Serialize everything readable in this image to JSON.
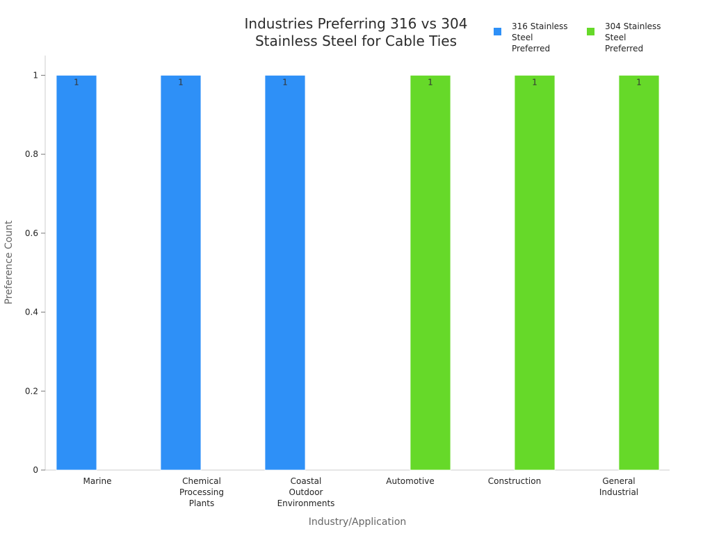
{
  "chart_data": {
    "type": "bar",
    "title": "Industries Preferring 316 vs 304 Stainless Steel for Cable Ties",
    "xlabel": "Industry/Application",
    "ylabel": "Preference Count",
    "ylim": [
      0,
      1.05
    ],
    "yticks": [
      0,
      0.2,
      0.4,
      0.6,
      0.8,
      1
    ],
    "ytick_labels": [
      "0",
      "0.2",
      "0.4",
      "0.6",
      "0.8",
      "1"
    ],
    "categories": [
      "Marine",
      "Chemical Processing Plants",
      "Coastal Outdoor Environments",
      "Automotive",
      "Construction",
      "General Industrial"
    ],
    "series": [
      {
        "name": "316 Stainless Steel Preferred",
        "color": "#2e90f7",
        "values": [
          1,
          1,
          1,
          0,
          0,
          0
        ]
      },
      {
        "name": "304 Stainless Steel Preferred",
        "color": "#66d929",
        "values": [
          0,
          0,
          0,
          1,
          1,
          1
        ]
      }
    ],
    "data_labels": true,
    "grid": false,
    "legend_position": "top-right",
    "layout": "grouped"
  }
}
